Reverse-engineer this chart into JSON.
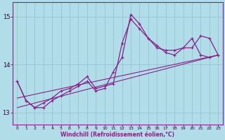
{
  "xlabel": "Windchill (Refroidissement éolien,°C)",
  "background_color": "#b0dde8",
  "grid_color": "#90c0cc",
  "line_color": "#882288",
  "xlim": [
    -0.5,
    23.5
  ],
  "ylim": [
    12.75,
    15.3
  ],
  "yticks": [
    13,
    14,
    15
  ],
  "xticks": [
    0,
    1,
    2,
    3,
    4,
    5,
    6,
    7,
    8,
    9,
    10,
    11,
    12,
    13,
    14,
    15,
    16,
    17,
    18,
    19,
    20,
    21,
    22,
    23
  ],
  "curve_x": [
    0,
    1,
    2,
    3,
    4,
    5,
    6,
    7,
    8,
    9,
    10,
    11,
    12,
    13,
    14,
    15,
    16,
    17,
    18,
    19,
    20,
    21,
    22,
    23
  ],
  "curve_y": [
    13.65,
    13.25,
    13.1,
    13.2,
    13.3,
    13.45,
    13.5,
    13.6,
    13.75,
    13.5,
    13.55,
    13.6,
    14.45,
    14.95,
    14.75,
    14.55,
    14.35,
    14.3,
    14.3,
    14.35,
    14.35,
    14.6,
    14.55,
    14.2
  ],
  "curve2_x": [
    0,
    1,
    2,
    3,
    4,
    5,
    6,
    7,
    8,
    9,
    10,
    11,
    12,
    13,
    14,
    15,
    16,
    17,
    18,
    19,
    20,
    21,
    22,
    23
  ],
  "curve2_y": [
    13.65,
    13.25,
    13.1,
    13.1,
    13.25,
    13.35,
    13.45,
    13.55,
    13.65,
    13.45,
    13.5,
    13.85,
    14.15,
    15.05,
    14.85,
    14.55,
    14.4,
    14.25,
    14.2,
    14.35,
    14.55,
    14.2,
    14.15,
    14.2
  ],
  "line1_x": [
    0,
    23
  ],
  "line1_y": [
    13.1,
    14.2
  ],
  "line2_x": [
    0,
    23
  ],
  "line2_y": [
    13.3,
    14.2
  ]
}
